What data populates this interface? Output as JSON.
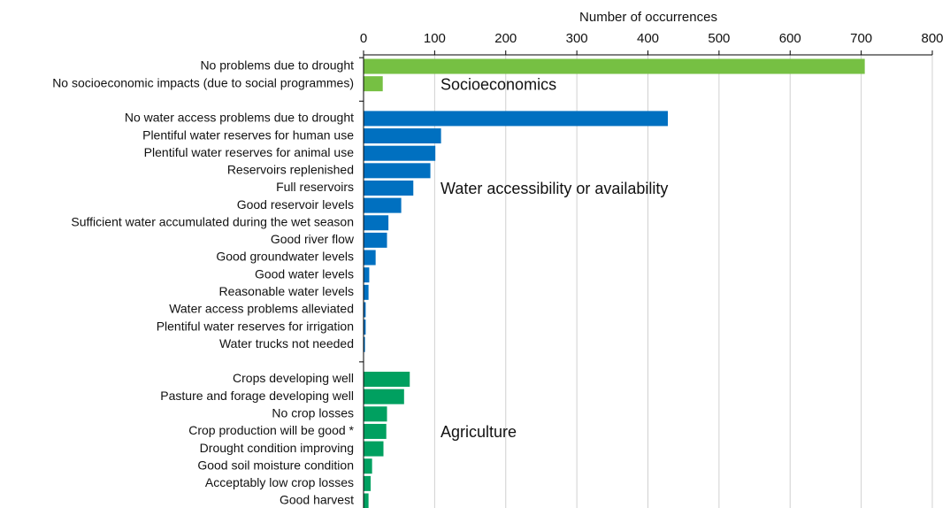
{
  "chart_data": {
    "type": "bar",
    "orientation": "horizontal",
    "xlabel": "Number of occurrences",
    "categories": [
      "No problems due to drought",
      "No socioeconomic impacts (due to social programmes)",
      null,
      "No water access problems due to drought",
      "Plentiful water reserves for human use",
      "Plentiful water reserves for animal use",
      "Reservoirs replenished",
      "Full reservoirs",
      "Good reservoir levels",
      "Sufficient water accumulated during the wet season",
      "Good river flow",
      "Good groundwater levels",
      "Good water levels",
      "Reasonable water levels",
      "Water access problems alleviated",
      "Plentiful water reserves for irrigation",
      "Water trucks not needed",
      null,
      "Crops developing well",
      "Pasture and forage developing well",
      "No crop losses",
      "Crop production will be good *",
      "Drought condition improving",
      "Good soil moisture condition",
      "Acceptably low crop losses",
      "Good harvest"
    ],
    "series": [
      {
        "name": "Socioeconomics",
        "color": "#76c043",
        "values": [
          705,
          27,
          null,
          null,
          null,
          null,
          null,
          null,
          null,
          null,
          null,
          null,
          null,
          null,
          null,
          null,
          null,
          null,
          null,
          null,
          null,
          null,
          null,
          null,
          null,
          null
        ]
      },
      {
        "name": "Water accessibility or availability",
        "color": "#0070c0",
        "values": [
          null,
          null,
          null,
          428,
          109,
          101,
          94,
          70,
          53,
          35,
          33,
          17,
          8,
          7,
          3,
          3,
          2,
          null,
          null,
          null,
          null,
          null,
          null,
          null,
          null,
          null
        ]
      },
      {
        "name": "Agriculture",
        "color": "#00a060",
        "values": [
          null,
          null,
          null,
          null,
          null,
          null,
          null,
          null,
          null,
          null,
          null,
          null,
          null,
          null,
          null,
          null,
          null,
          null,
          65,
          57,
          33,
          32,
          28,
          12,
          10,
          7
        ]
      }
    ],
    "xlim": [
      0,
      800
    ],
    "xticks": [
      0,
      100,
      200,
      300,
      400,
      500,
      600,
      700,
      800
    ],
    "grid": true
  }
}
